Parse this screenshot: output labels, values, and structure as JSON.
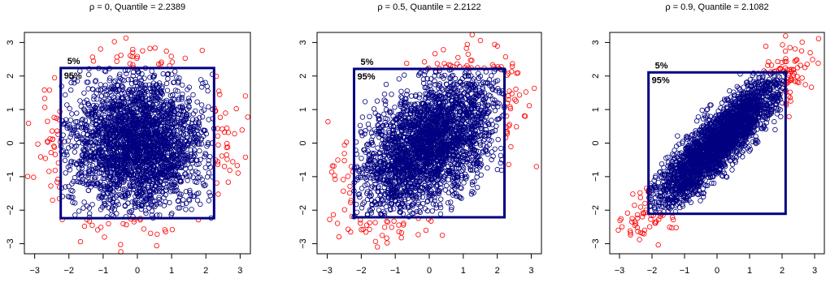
{
  "chart_data": [
    {
      "type": "scatter",
      "title": "ρ = 0, Quantile = 2.2389",
      "rho": 0,
      "quantile": 2.2389,
      "xlim": [
        -3.3,
        3.3
      ],
      "ylim": [
        -3.3,
        3.3
      ],
      "xticks": [
        "−3",
        "−2",
        "−1",
        "0",
        "1",
        "2",
        "3"
      ],
      "yticks": [
        "−3",
        "−2",
        "−1",
        "0",
        "1",
        "2",
        "3"
      ],
      "box": [
        -2.2389,
        2.2389
      ],
      "labels": {
        "outer": "5%",
        "inner": "95%"
      },
      "colors": {
        "inside": "#000080",
        "outside": "#ff0000",
        "box": "#000080"
      }
    },
    {
      "type": "scatter",
      "title": "ρ = 0.5, Quantile = 2.2122",
      "rho": 0.5,
      "quantile": 2.2122,
      "xlim": [
        -3.3,
        3.3
      ],
      "ylim": [
        -3.3,
        3.3
      ],
      "xticks": [
        "−3",
        "−2",
        "−1",
        "0",
        "1",
        "2",
        "3"
      ],
      "yticks": [
        "−3",
        "−2",
        "−1",
        "0",
        "1",
        "2",
        "3"
      ],
      "box": [
        -2.2122,
        2.2122
      ],
      "labels": {
        "outer": "5%",
        "inner": "95%"
      },
      "colors": {
        "inside": "#000080",
        "outside": "#ff0000",
        "box": "#000080"
      }
    },
    {
      "type": "scatter",
      "title": "ρ = 0.9, Quantile = 2.1082",
      "rho": 0.9,
      "quantile": 2.1082,
      "xlim": [
        -3.3,
        3.3
      ],
      "ylim": [
        -3.3,
        3.3
      ],
      "xticks": [
        "−3",
        "−2",
        "−1",
        "0",
        "1",
        "2",
        "3"
      ],
      "yticks": [
        "−3",
        "−2",
        "−1",
        "0",
        "1",
        "2",
        "3"
      ],
      "box": [
        -2.1082,
        2.1082
      ],
      "labels": {
        "outer": "5%",
        "inner": "95%"
      },
      "colors": {
        "inside": "#000080",
        "outside": "#ff0000",
        "box": "#000080"
      }
    }
  ]
}
